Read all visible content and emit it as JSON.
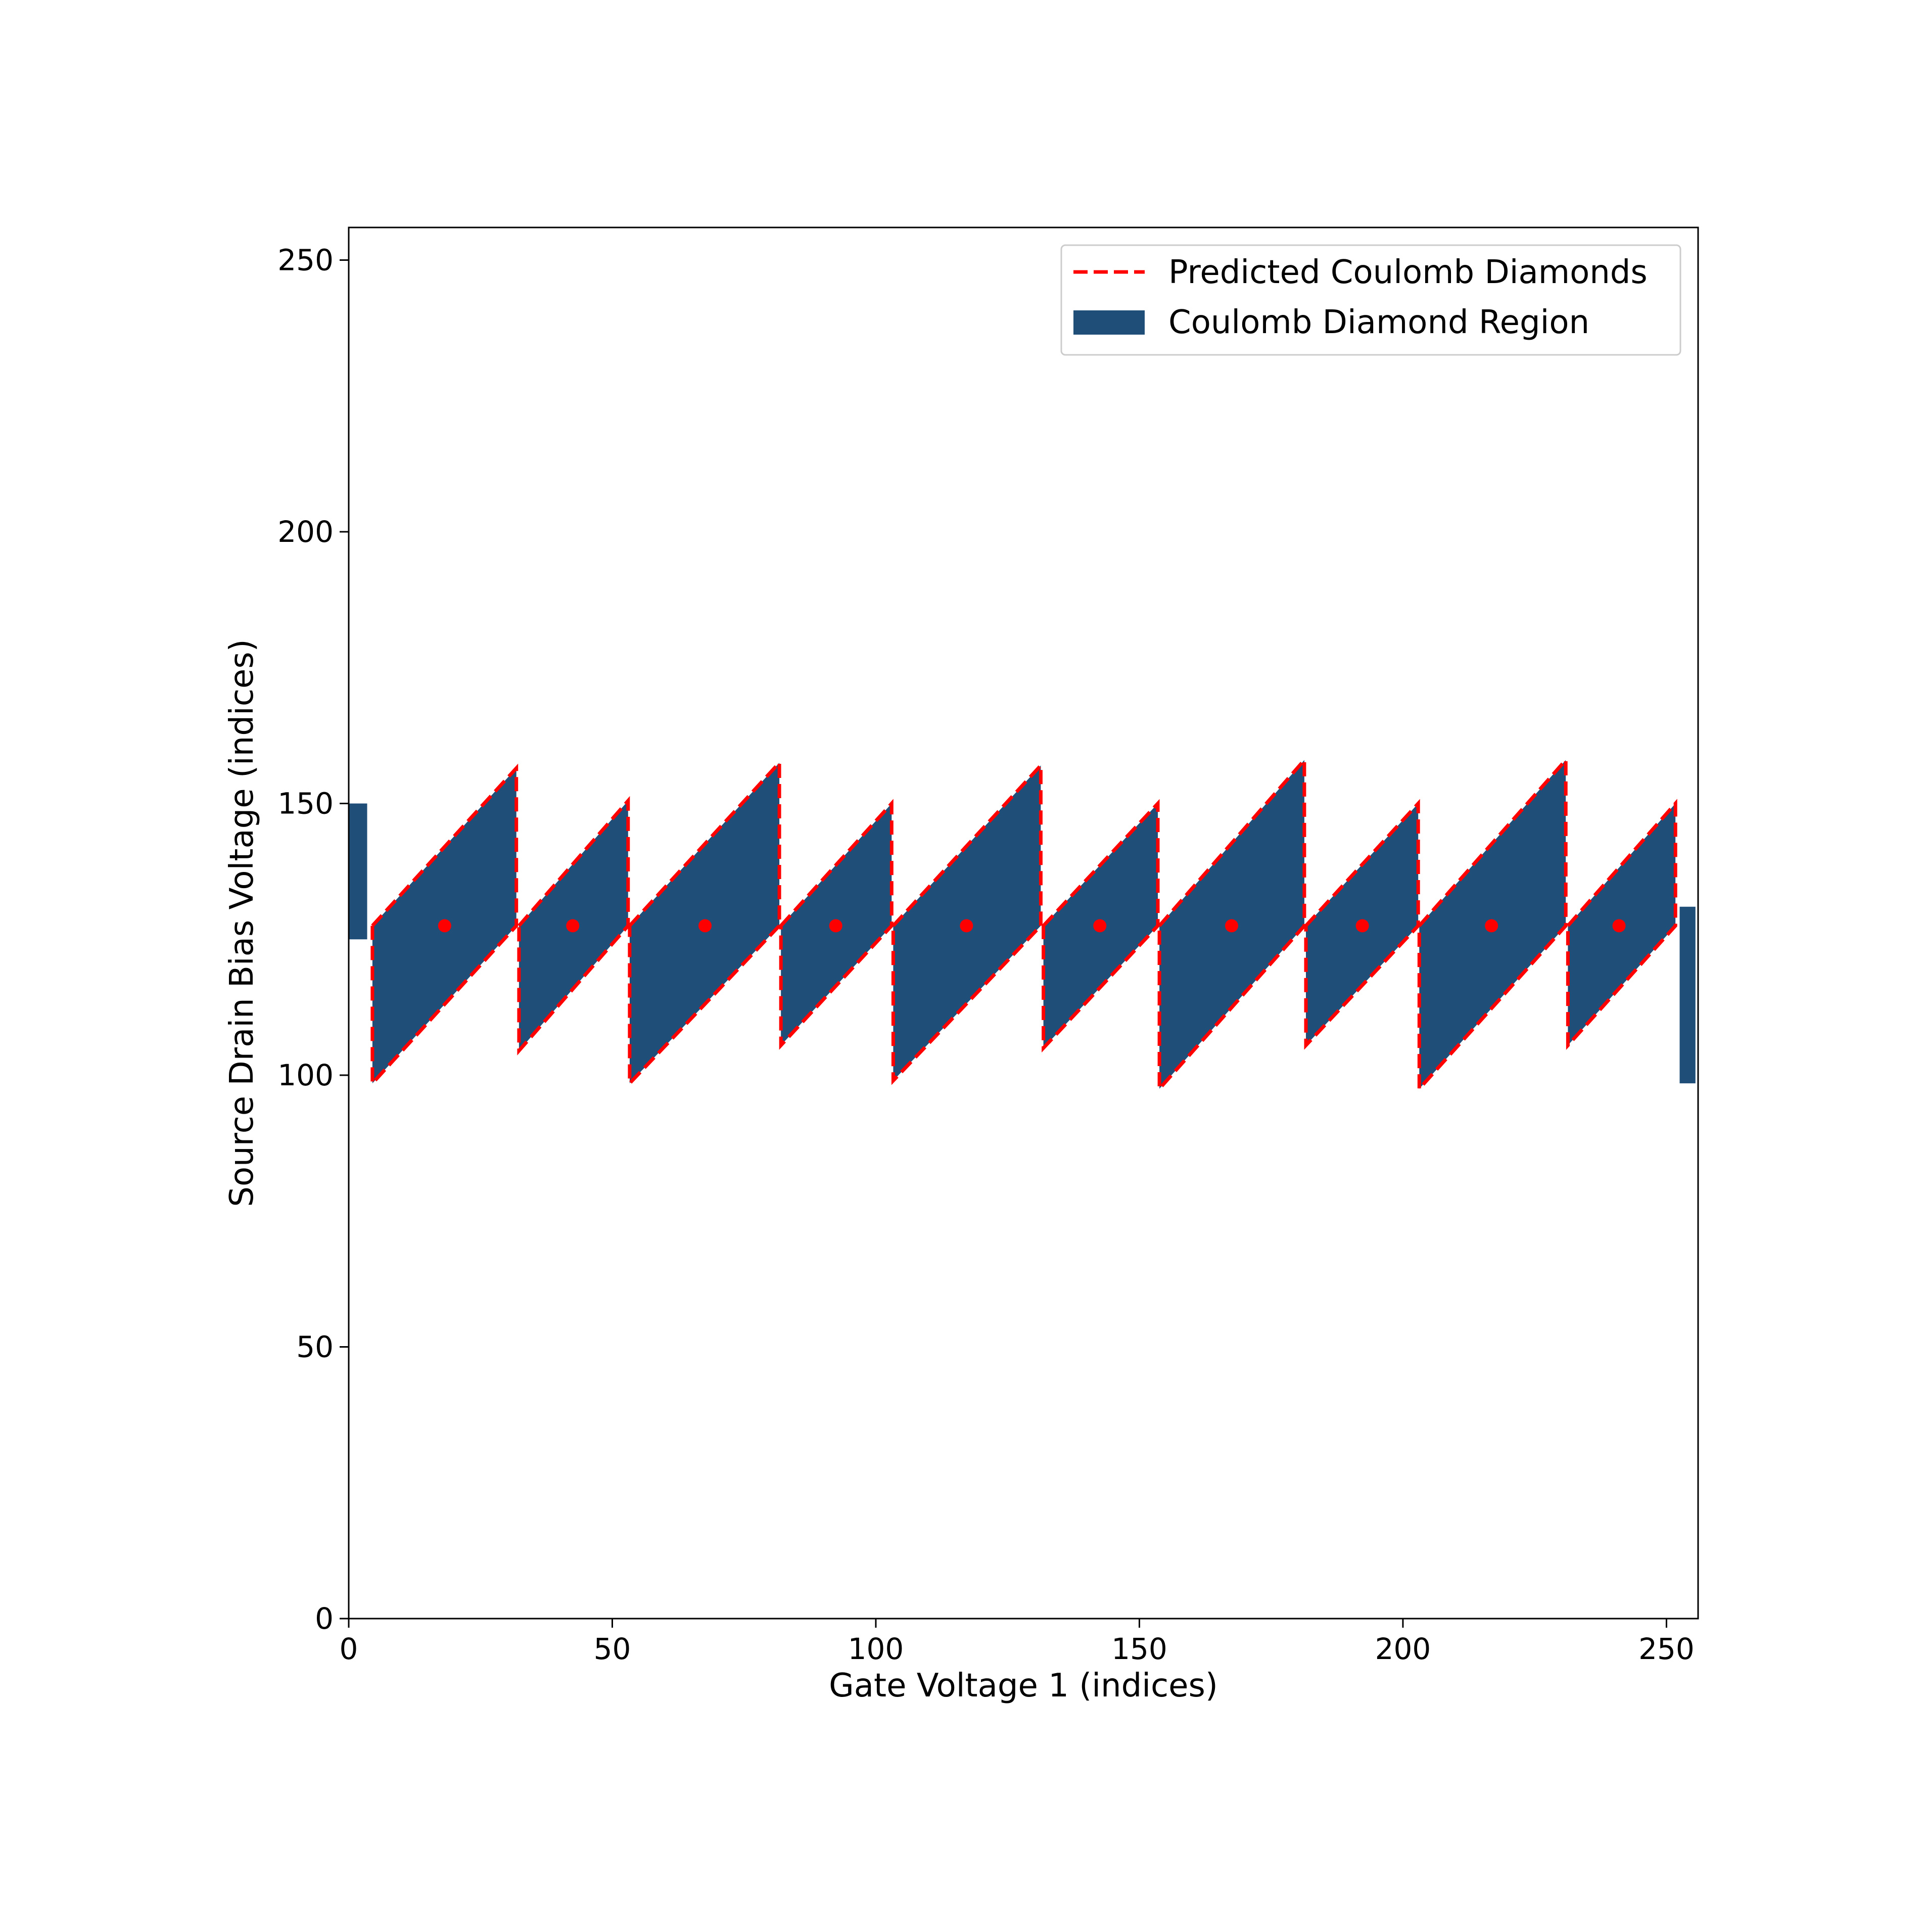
{
  "chart_data": {
    "type": "scatter",
    "title": "",
    "xlabel": "Gate Voltage 1 (indices)",
    "ylabel": "Source Drain Bias Voltage (indices)",
    "xlim": [
      0,
      256
    ],
    "ylim": [
      0,
      256
    ],
    "xticks": [
      "0",
      "50",
      "100",
      "150",
      "200",
      "250"
    ],
    "yticks": [
      "0",
      "50",
      "100",
      "150",
      "200",
      "250"
    ],
    "grid": false,
    "legend_position": "upper right",
    "legend": [
      {
        "label": "Predicted Coulomb Diamonds",
        "style": "dashed-line",
        "color": "#ff0000"
      },
      {
        "label": "Coulomb Diamond Region",
        "style": "filled-patch",
        "color": "#1f4e79"
      }
    ],
    "region_color": "#1f4e79",
    "predicted_color": "#ff0000",
    "center_y": 127.5,
    "diamonds": [
      {
        "left": 4.5,
        "right": 31.8,
        "top_right": 156.5,
        "bottom_left": 98.5,
        "center_x": 18.2
      },
      {
        "left": 32.3,
        "right": 53.0,
        "top_right": 150.5,
        "bottom_left": 104.5,
        "center_x": 42.5
      },
      {
        "left": 53.3,
        "right": 81.7,
        "top_right": 157.5,
        "bottom_left": 98.5,
        "center_x": 67.6
      },
      {
        "left": 82.0,
        "right": 103.0,
        "top_right": 150.0,
        "bottom_left": 105.5,
        "center_x": 92.4
      },
      {
        "left": 103.3,
        "right": 131.3,
        "top_right": 157.0,
        "bottom_left": 99.0,
        "center_x": 117.2
      },
      {
        "left": 131.8,
        "right": 153.5,
        "top_right": 150.0,
        "bottom_left": 105.0,
        "center_x": 142.5
      },
      {
        "left": 153.8,
        "right": 181.3,
        "top_right": 158.0,
        "bottom_left": 97.5,
        "center_x": 167.5
      },
      {
        "left": 181.6,
        "right": 202.9,
        "top_right": 150.0,
        "bottom_left": 105.5,
        "center_x": 192.3
      },
      {
        "left": 203.1,
        "right": 230.9,
        "top_right": 158.0,
        "bottom_left": 97.5,
        "center_x": 216.8
      },
      {
        "left": 231.3,
        "right": 251.7,
        "top_right": 150.0,
        "bottom_left": 105.5,
        "center_x": 241.0
      }
    ],
    "edge_regions": [
      {
        "x0": 0.0,
        "x1": 3.5,
        "y0": 125.0,
        "y1": 150.0
      },
      {
        "x0": 252.5,
        "x1": 255.5,
        "y0": 98.5,
        "y1": 131.0
      }
    ]
  }
}
